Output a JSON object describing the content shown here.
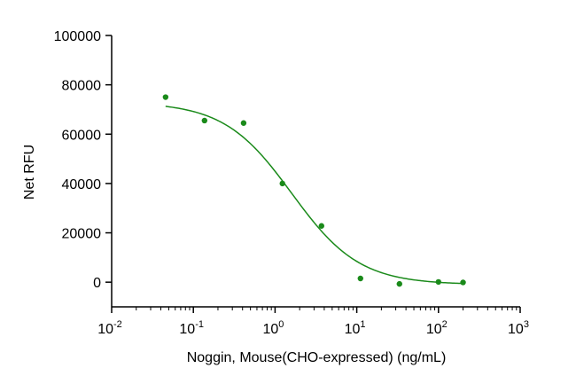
{
  "chart_data": {
    "type": "scatter",
    "title": "",
    "xlabel": "Noggin, Mouse(CHO-expressed) (ng/mL)",
    "ylabel": "Net RFU",
    "x_scale": "log",
    "xlim": [
      0.01,
      1000
    ],
    "ylim": [
      -10000,
      100000
    ],
    "grid": false,
    "legend": "none",
    "y_ticks": [
      0,
      20000,
      40000,
      60000,
      80000,
      100000
    ],
    "y_tick_labels": [
      "0",
      "20000",
      "40000",
      "60000",
      "80000",
      "100000"
    ],
    "x_ticks": [
      {
        "value": 0.01,
        "base": "10",
        "exp": "-2"
      },
      {
        "value": 0.1,
        "base": "10",
        "exp": "-1"
      },
      {
        "value": 1,
        "base": "10",
        "exp": "0"
      },
      {
        "value": 10,
        "base": "10",
        "exp": "1"
      },
      {
        "value": 100,
        "base": "10",
        "exp": "2"
      },
      {
        "value": 1000,
        "base": "10",
        "exp": "3"
      }
    ],
    "series": [
      {
        "points": [
          {
            "x": 0.0457,
            "y": 75000
          },
          {
            "x": 0.137,
            "y": 65500
          },
          {
            "x": 0.412,
            "y": 64500
          },
          {
            "x": 1.23,
            "y": 40000
          },
          {
            "x": 3.7,
            "y": 22800
          },
          {
            "x": 11.1,
            "y": 1500
          },
          {
            "x": 33.3,
            "y": -700
          },
          {
            "x": 100,
            "y": 100
          },
          {
            "x": 200,
            "y": -100
          }
        ],
        "fit": {
          "model": "4PL",
          "top": 73000,
          "bottom": -1000,
          "ec50": 1.6,
          "hill": 1.05,
          "x_range": [
            0.0457,
            200
          ]
        },
        "color": "#1a8a1a"
      }
    ]
  }
}
